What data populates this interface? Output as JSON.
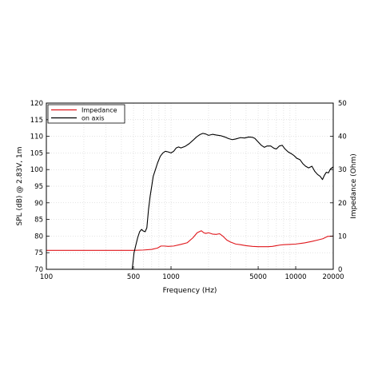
{
  "chart_data": {
    "type": "line",
    "xlabel": "Frequency (Hz)",
    "ylabel": "SPL (dB) @ 2.83V, 1m",
    "y2label": "Impedance (Ohm)",
    "xscale": "log",
    "xlim": [
      100,
      20000
    ],
    "ylim": [
      70,
      120
    ],
    "y2lim": [
      0,
      50
    ],
    "grid": true,
    "legend_position": "top-left",
    "x_tick_labels": [
      "100",
      "500",
      "1000",
      "5000",
      "10000",
      "20000"
    ],
    "x_tick_values": [
      100,
      500,
      1000,
      5000,
      10000,
      20000
    ],
    "y_tick_labels": [
      "70",
      "75",
      "80",
      "85",
      "90",
      "95",
      "100",
      "105",
      "110",
      "115",
      "120"
    ],
    "y2_tick_labels": [
      "0",
      "10",
      "20",
      "30",
      "40",
      "50"
    ],
    "series": [
      {
        "name": "Impedance",
        "axis": "right",
        "color": "#e0161b",
        "x": [
          100,
          200,
          300,
          400,
          500,
          600,
          700,
          780,
          830,
          880,
          950,
          1050,
          1200,
          1350,
          1500,
          1620,
          1750,
          1830,
          1900,
          2000,
          2150,
          2300,
          2450,
          2600,
          2800,
          3000,
          3300,
          3600,
          4000,
          4500,
          5000,
          5500,
          6000,
          6500,
          7000,
          7500,
          8000,
          9000,
          10000,
          11000,
          12000,
          13500,
          15000,
          16500,
          18000,
          20000
        ],
        "values": [
          5.7,
          5.7,
          5.7,
          5.7,
          5.7,
          5.8,
          6.0,
          6.4,
          7.0,
          7.0,
          6.9,
          7.0,
          7.5,
          8.0,
          9.5,
          11.0,
          11.6,
          11.0,
          10.8,
          11.0,
          10.6,
          10.5,
          10.7,
          10.0,
          8.8,
          8.2,
          7.6,
          7.4,
          7.1,
          6.9,
          6.8,
          6.8,
          6.8,
          6.9,
          7.1,
          7.3,
          7.4,
          7.5,
          7.6,
          7.8,
          8.0,
          8.4,
          8.8,
          9.2,
          9.9,
          10.0
        ]
      },
      {
        "name": "on axis",
        "axis": "left",
        "color": "#000000",
        "x": [
          488,
          495,
          505,
          520,
          540,
          560,
          580,
          600,
          620,
          640,
          660,
          680,
          700,
          720,
          750,
          780,
          820,
          860,
          900,
          950,
          1000,
          1050,
          1100,
          1150,
          1200,
          1300,
          1400,
          1500,
          1600,
          1700,
          1800,
          1900,
          2000,
          2150,
          2300,
          2500,
          2700,
          2900,
          3100,
          3300,
          3600,
          3900,
          4200,
          4500,
          4700,
          5000,
          5300,
          5600,
          5900,
          6300,
          6700,
          7000,
          7400,
          7800,
          8200,
          8700,
          9200,
          9700,
          10200,
          10800,
          11400,
          12000,
          12700,
          13500,
          14200,
          15000,
          15700,
          16400,
          17000,
          17600,
          18300,
          19000,
          19500,
          20000
        ],
        "values": [
          70.0,
          72.0,
          75.0,
          77.0,
          79.5,
          81.3,
          82.0,
          81.5,
          81.3,
          82.5,
          88.0,
          92.0,
          95.0,
          98.0,
          100.0,
          102.0,
          104.0,
          105.0,
          105.5,
          105.3,
          105.0,
          105.5,
          106.5,
          106.8,
          106.5,
          107.0,
          107.8,
          108.8,
          109.8,
          110.5,
          110.9,
          110.7,
          110.3,
          110.6,
          110.4,
          110.2,
          109.8,
          109.3,
          109.0,
          109.2,
          109.6,
          109.5,
          109.8,
          109.7,
          109.4,
          108.3,
          107.3,
          106.7,
          107.1,
          107.1,
          106.4,
          106.2,
          107.1,
          107.3,
          106.2,
          105.3,
          104.8,
          104.2,
          103.4,
          103.0,
          101.8,
          101.0,
          100.5,
          101.0,
          99.5,
          98.5,
          98.0,
          97.0,
          98.3,
          99.2,
          99.0,
          100.2,
          100.5,
          100.8
        ]
      }
    ]
  }
}
